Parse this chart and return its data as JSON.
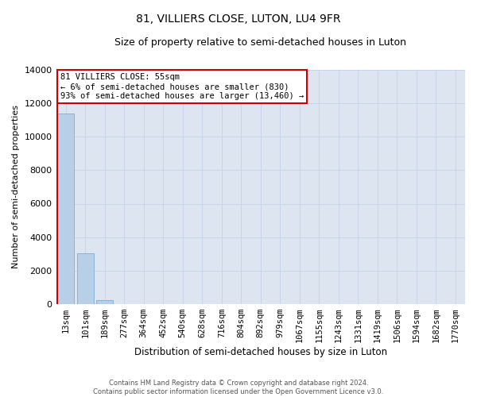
{
  "title": "81, VILLIERS CLOSE, LUTON, LU4 9FR",
  "subtitle": "Size of property relative to semi-detached houses in Luton",
  "xlabel": "Distribution of semi-detached houses by size in Luton",
  "ylabel": "Number of semi-detached properties",
  "categories": [
    "13sqm",
    "101sqm",
    "189sqm",
    "277sqm",
    "364sqm",
    "452sqm",
    "540sqm",
    "628sqm",
    "716sqm",
    "804sqm",
    "892sqm",
    "979sqm",
    "1067sqm",
    "1155sqm",
    "1243sqm",
    "1331sqm",
    "1419sqm",
    "1506sqm",
    "1594sqm",
    "1682sqm",
    "1770sqm"
  ],
  "bar_heights": [
    11400,
    3050,
    230,
    0,
    0,
    0,
    0,
    0,
    0,
    0,
    0,
    0,
    0,
    0,
    0,
    0,
    0,
    0,
    0,
    0,
    0
  ],
  "bar_color": "#b8cfe8",
  "bar_edge_color": "#7aadd4",
  "highlight_color": "#cc0000",
  "ylim": [
    0,
    14000
  ],
  "yticks": [
    0,
    2000,
    4000,
    6000,
    8000,
    10000,
    12000,
    14000
  ],
  "annotation_text": "81 VILLIERS CLOSE: 55sqm\n← 6% of semi-detached houses are smaller (830)\n93% of semi-detached houses are larger (13,460) →",
  "annotation_box_color": "#ffffff",
  "annotation_box_edge": "#cc0000",
  "grid_color": "#c8d4e8",
  "background_color": "#dde6f0",
  "footer_line1": "Contains HM Land Registry data © Crown copyright and database right 2024.",
  "footer_line2": "Contains public sector information licensed under the Open Government Licence v3.0."
}
